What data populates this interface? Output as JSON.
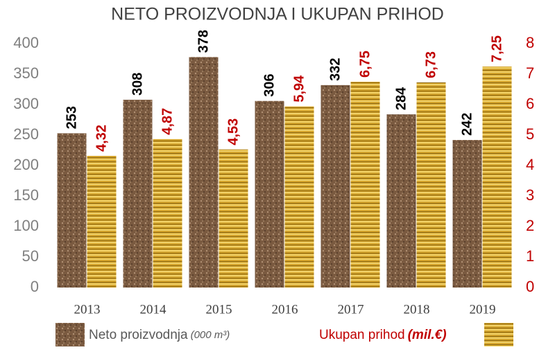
{
  "chart_data": {
    "type": "bar",
    "title": "NETO PROIZVODNJA I UKUPAN PRIHOD",
    "categories": [
      "2013",
      "2014",
      "2015",
      "2016",
      "2017",
      "2018",
      "2019"
    ],
    "series": [
      {
        "name": "Neto proizvodnja",
        "unit": "(000 m³)",
        "color": "#7a5a40",
        "label_color": "#000000",
        "values": [
          253,
          308,
          378,
          306,
          332,
          284,
          242
        ]
      },
      {
        "name": "Ukupan prihod",
        "unit": "(mil.€)",
        "color": "#d4a32a",
        "label_color": "#c00000",
        "axis": "y2",
        "values": [
          4.32,
          4.87,
          4.53,
          5.94,
          6.75,
          6.73,
          7.25
        ],
        "value_labels": [
          "4,32",
          "4,87",
          "4,53",
          "5,94",
          "6,75",
          "6,73",
          "7,25"
        ]
      }
    ],
    "ylim": [
      0,
      400
    ],
    "yticks": [
      0,
      50,
      100,
      150,
      200,
      250,
      300,
      350,
      400
    ],
    "y2lim": [
      0,
      8
    ],
    "y2ticks": [
      0,
      1,
      2,
      3,
      4,
      5,
      6,
      7,
      8
    ]
  }
}
